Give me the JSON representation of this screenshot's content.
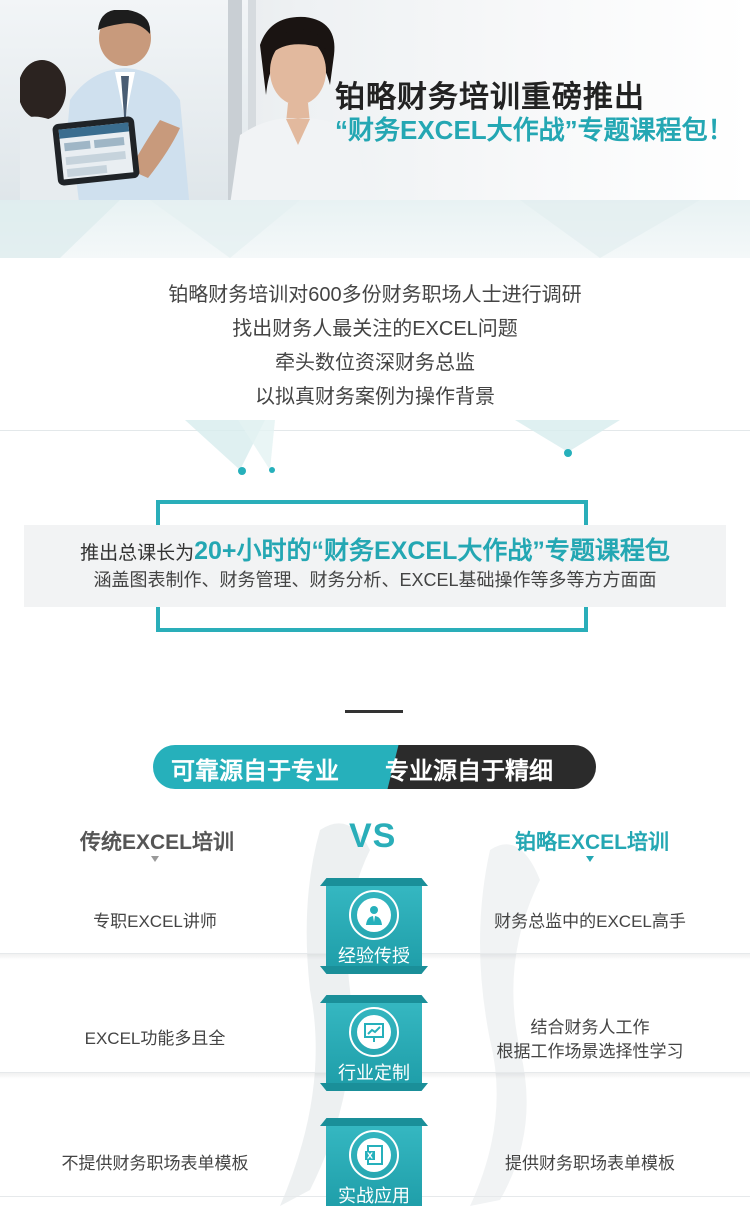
{
  "hero": {
    "title": "铂略财务培训重磅推出",
    "subtitle": "“财务EXCEL大作战”专题课程包！"
  },
  "intro": {
    "lines": [
      "铂略财务培训对600多份财务职场人士进行调研",
      "找出财务人最关注的EXCEL问题",
      "牵头数位资深财务总监",
      "以拟真财务案例为操作背景"
    ]
  },
  "highlight": {
    "prefix": "推出总课长为",
    "emphasis": "20+小时的“财务EXCEL大作战”专题课程包",
    "line2": "涵盖图表制作、财务管理、财务分析、EXCEL基础操作等多等方方面面"
  },
  "section": {
    "pill_left": "可靠源自于专业",
    "pill_right": "专业源自于精细"
  },
  "compare": {
    "left_head": "传统EXCEL培训",
    "vs": "VS",
    "right_head": "铂略EXCEL培训",
    "accent": "#26b0bb",
    "rows": [
      {
        "left": "专职EXCEL讲师",
        "badge": "经验传授",
        "icon": "teacher-icon",
        "right": "财务总监中的EXCEL高手"
      },
      {
        "left": "EXCEL功能多且全",
        "badge": "行业定制",
        "icon": "presentation-chart-icon",
        "right_line1": "结合财务人工作",
        "right_line2": "根据工作场景选择性学习"
      },
      {
        "left": "不提供财务职场表单模板",
        "badge": "实战应用",
        "icon": "excel-file-icon",
        "right": "提供财务职场表单模板"
      }
    ]
  }
}
